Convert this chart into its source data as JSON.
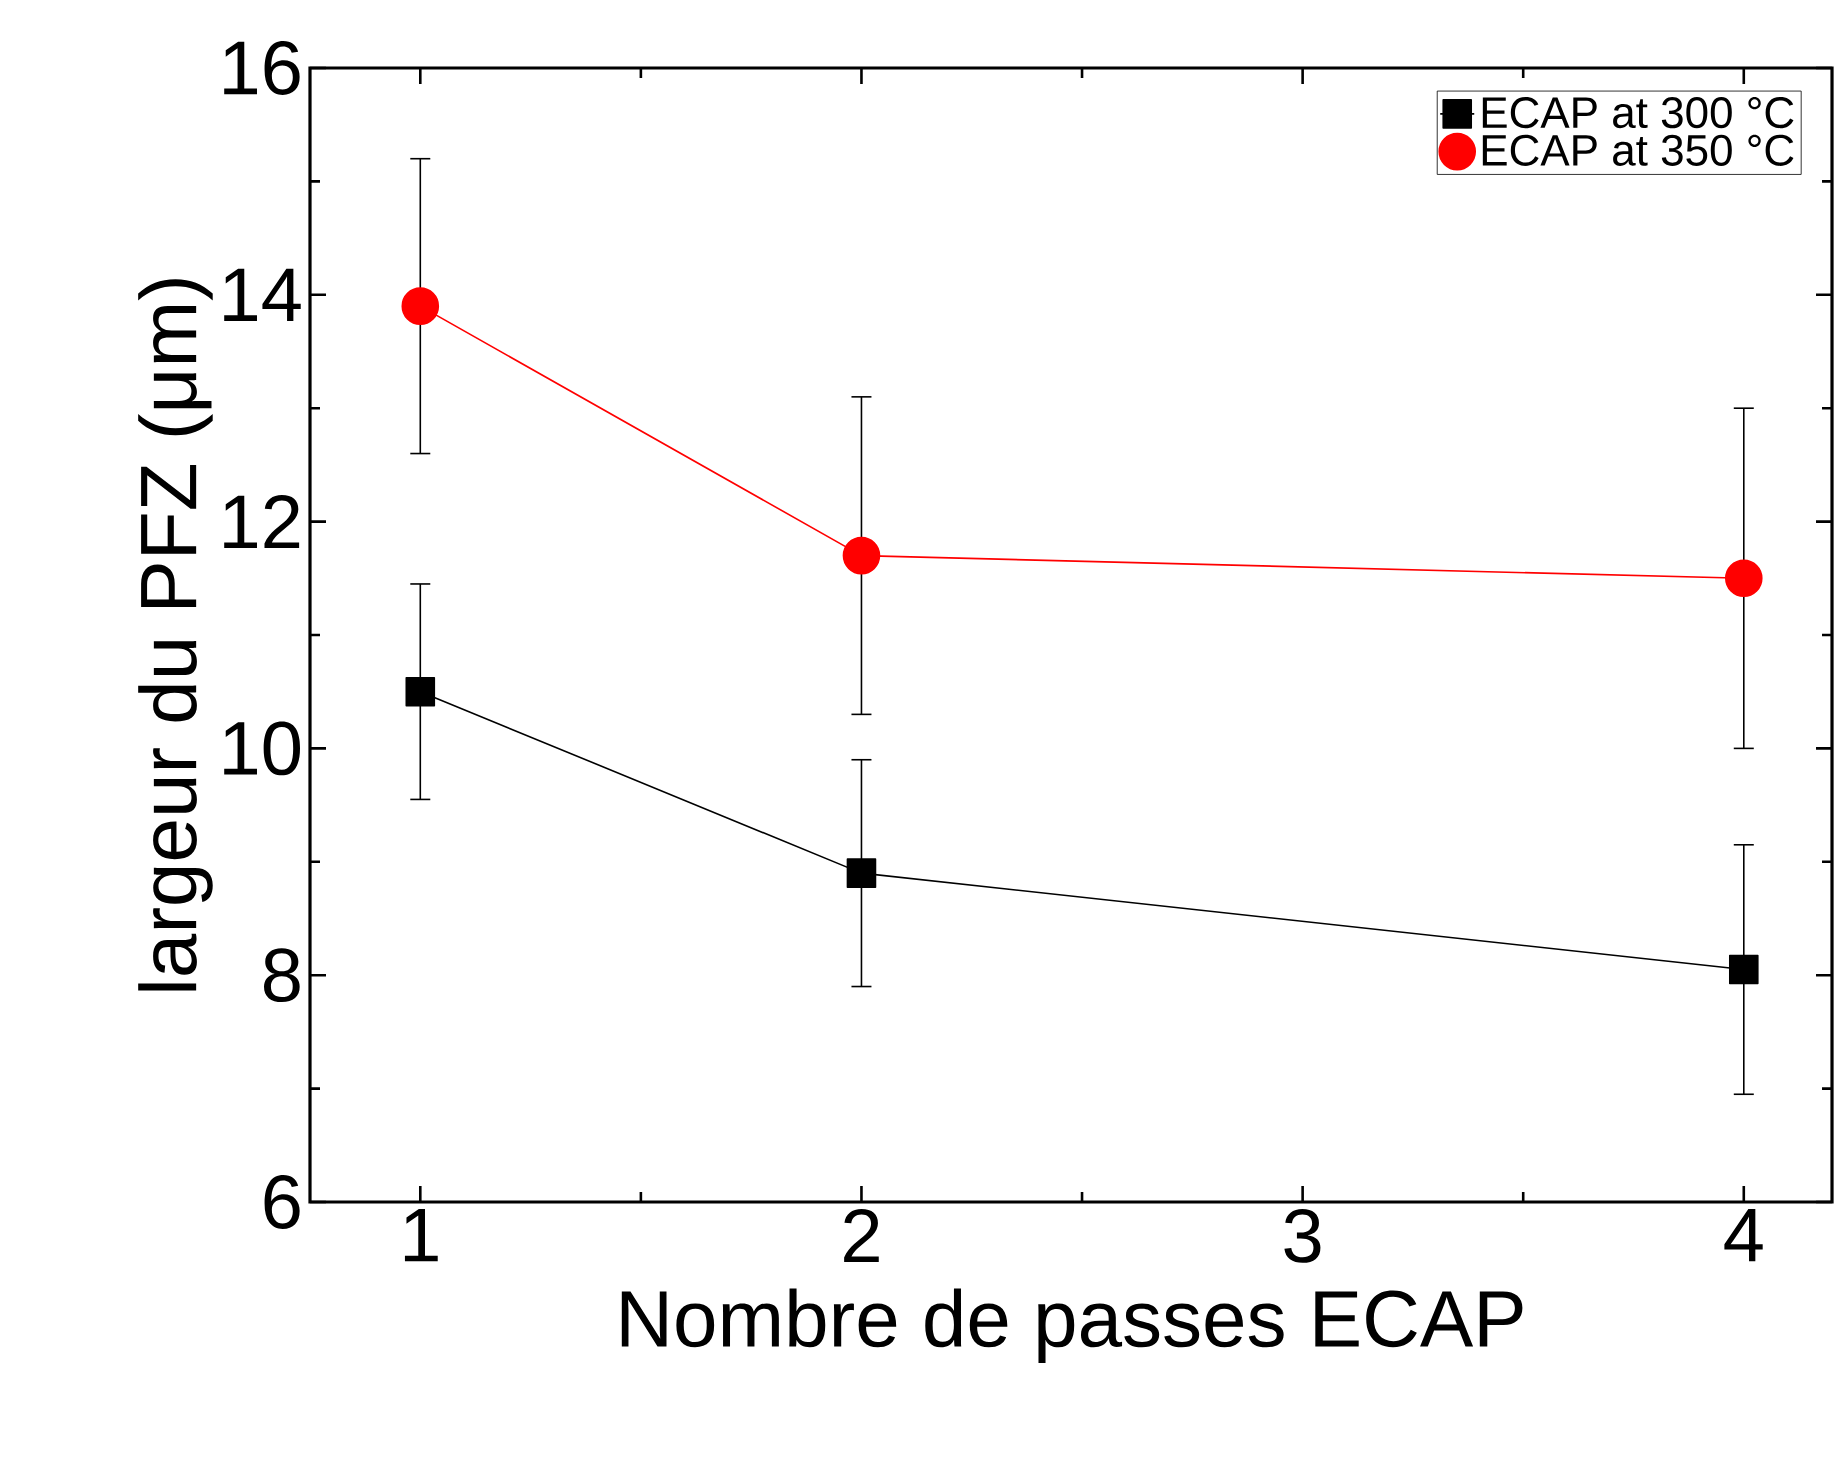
{
  "chart_data": {
    "type": "line",
    "xlabel": "Nombre de passes ECAP",
    "ylabel": "largeur du PFZ (μm)",
    "x": [
      1,
      2,
      4
    ],
    "xlim": [
      0.75,
      4.2
    ],
    "xticks": [
      1,
      2,
      3,
      4
    ],
    "ylim": [
      6,
      16
    ],
    "yticks": [
      6,
      8,
      10,
      12,
      14,
      16
    ],
    "legend": "top right",
    "series": [
      {
        "name": "ECAP at 300 °C",
        "color": "#000000",
        "marker": "square",
        "values": [
          10.5,
          8.9,
          8.05
        ],
        "errors": [
          0.95,
          1.0,
          1.1
        ]
      },
      {
        "name": "ECAP at 350 °C",
        "color": "#ff0000",
        "marker": "circle",
        "values": [
          13.9,
          11.7,
          11.5
        ],
        "errors": [
          1.3,
          1.4,
          1.5
        ]
      }
    ]
  }
}
